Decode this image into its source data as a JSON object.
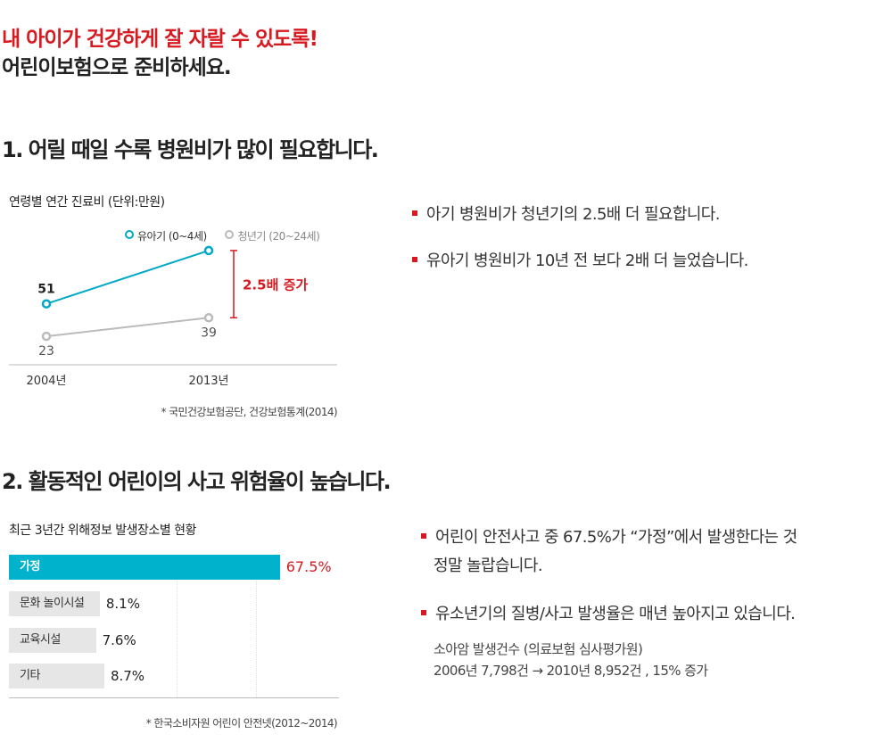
{
  "headline": {
    "line1": "내 아이가 건강하게 잘 자랄 수 있도록!",
    "line2": "어린이보험으로 준비하세요."
  },
  "section1": {
    "title": "1. 어릴 때일 수록 병원비가 많이 필요합니다.",
    "bullets": [
      "아기 병원비가 청년기의 2.5배 더 필요합니다.",
      "유아기 병원비가 10년 전 보다 2배 더 늘었습니다."
    ]
  },
  "section2": {
    "title": "2. 활동적인 어린이의 사고 위험율이 높습니다.",
    "bullets": [
      {
        "line1": "어린이 안전사고 중 67.5%가 “가정”에서 발생한다는 것",
        "line2": "정말 놀랍습니다."
      },
      {
        "line1": "유소년기의 질병/사고 발생율은 매년 높아지고 있습니다."
      }
    ],
    "note_line1": "소아암 발생건수 (의료보험 심사평가원)",
    "note_line2": "2006년 7,798건 → 2010년 8,952건 , 15% 증가"
  },
  "chart_data": [
    {
      "type": "line",
      "title": "연령별 연간 진료비 (단위:만원)",
      "categories": [
        "2004년",
        "2013년"
      ],
      "series": [
        {
          "name": "유아기 (0~4세)",
          "values": [
            51,
            97
          ],
          "color": "#00a9c5"
        },
        {
          "name": "청년기 (20~24세)",
          "values": [
            23,
            39
          ],
          "color": "#bbbbbb"
        }
      ],
      "annotation": "2.5배 증가",
      "annotation_color": "#d71920",
      "source": "* 국민건강보험공단, 건강보험통계(2014)",
      "legend": "top-right",
      "ylim": [
        0,
        110
      ]
    },
    {
      "type": "bar",
      "orientation": "horizontal",
      "title": "최근 3년간 위해정보 발생장소별 현황",
      "categories": [
        "가정",
        "문화 놀이시설",
        "교육시설",
        "기타"
      ],
      "values": [
        67.5,
        8.1,
        7.6,
        8.7
      ],
      "value_labels": [
        "67.5%",
        "8.1%",
        "7.6%",
        "8.7%"
      ],
      "highlight_color": "#00b2cb",
      "source": "* 한국소비자원 어린이 안전넷(2012~2014)",
      "xlim": [
        0,
        100
      ]
    }
  ]
}
